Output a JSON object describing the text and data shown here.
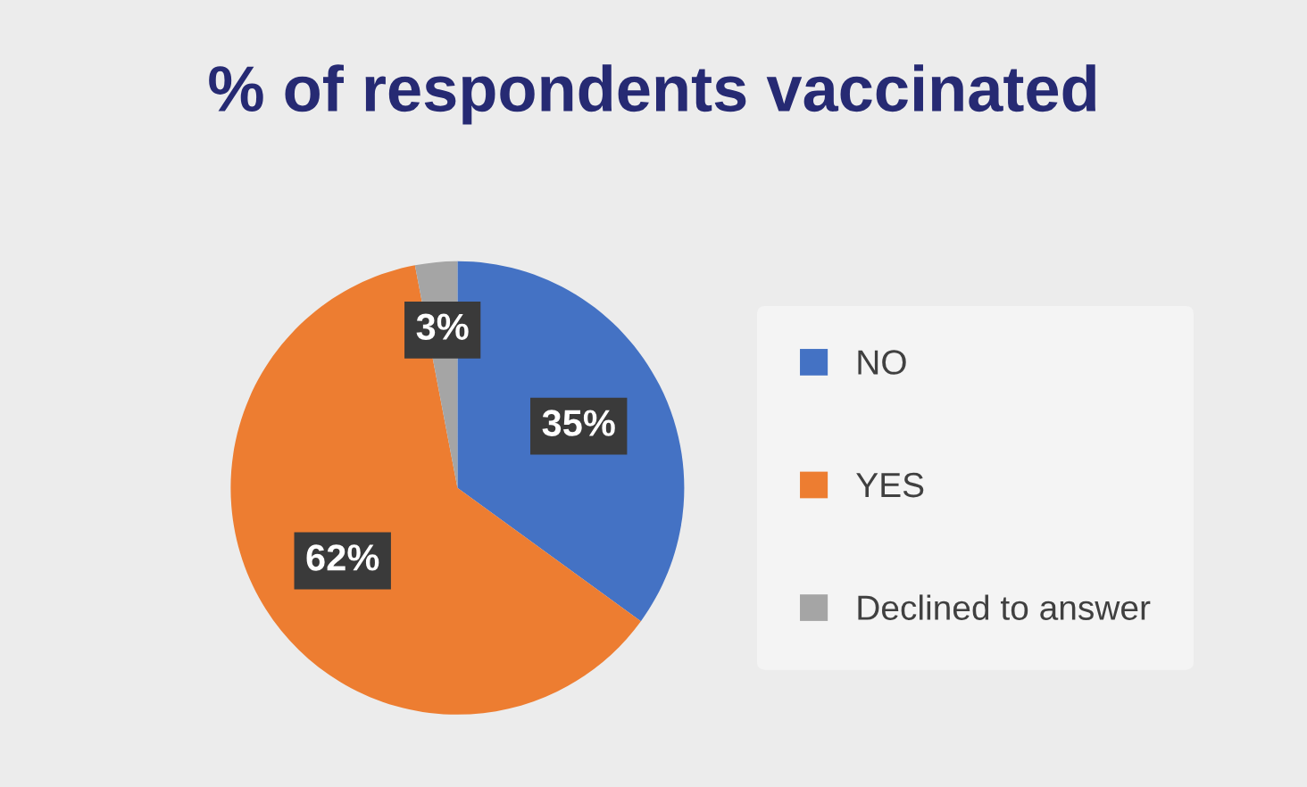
{
  "chart_data": {
    "type": "pie",
    "title": "% of respondents vaccinated",
    "categories": [
      "NO",
      "YES",
      "Declined to answer"
    ],
    "values": [
      35,
      62,
      3
    ],
    "colors": [
      "#4472c4",
      "#ed7d31",
      "#a5a5a5"
    ],
    "value_labels": [
      "35%",
      "62%",
      "3%"
    ],
    "legend": "right"
  }
}
